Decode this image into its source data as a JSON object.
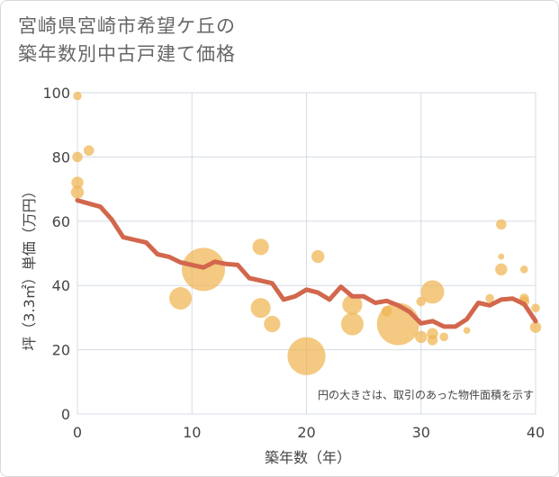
{
  "page": {
    "title_line1": "宮崎県宮崎市希望ケ丘の",
    "title_line2": "築年数別中古戸建て価格"
  },
  "chart_data": {
    "type": "scatter",
    "title": "宮崎県宮崎市希望ケ丘の築年数別中古戸建て価格",
    "xlabel": "築年数（年）",
    "ylabel": "坪（3.3㎡）単価（万円）",
    "xlim": [
      0,
      40
    ],
    "ylim": [
      0,
      100
    ],
    "xticks": [
      0,
      10,
      20,
      30,
      40
    ],
    "yticks": [
      0,
      20,
      40,
      60,
      80,
      100
    ],
    "grid": true,
    "annotation": "円の大きさは、取引のあった物件面積を示す",
    "colors": {
      "points": "#f0b450",
      "line": "#d2674d",
      "grid": "#d5dce6"
    },
    "points": [
      {
        "x": 0,
        "y": 99,
        "size": 1
      },
      {
        "x": 0,
        "y": 80,
        "size": 1.2
      },
      {
        "x": 0,
        "y": 72,
        "size": 1.4
      },
      {
        "x": 0,
        "y": 69,
        "size": 1.5
      },
      {
        "x": 1,
        "y": 82,
        "size": 1.2
      },
      {
        "x": 9,
        "y": 36,
        "size": 2.6
      },
      {
        "x": 11,
        "y": 45,
        "size": 5
      },
      {
        "x": 16,
        "y": 52,
        "size": 1.9
      },
      {
        "x": 16,
        "y": 33,
        "size": 2.3
      },
      {
        "x": 17,
        "y": 28,
        "size": 1.9
      },
      {
        "x": 20,
        "y": 18,
        "size": 4.4
      },
      {
        "x": 21,
        "y": 49,
        "size": 1.5
      },
      {
        "x": 24,
        "y": 34,
        "size": 2.3
      },
      {
        "x": 24,
        "y": 28,
        "size": 2.6
      },
      {
        "x": 27,
        "y": 32,
        "size": 1.2
      },
      {
        "x": 28,
        "y": 28,
        "size": 4.9
      },
      {
        "x": 30,
        "y": 35,
        "size": 1.1
      },
      {
        "x": 30,
        "y": 24,
        "size": 1.4
      },
      {
        "x": 31,
        "y": 38,
        "size": 2.7
      },
      {
        "x": 31,
        "y": 25,
        "size": 1.3
      },
      {
        "x": 31,
        "y": 23,
        "size": 1.2
      },
      {
        "x": 32,
        "y": 24,
        "size": 1
      },
      {
        "x": 34,
        "y": 26,
        "size": 0.8
      },
      {
        "x": 36,
        "y": 36,
        "size": 1
      },
      {
        "x": 37,
        "y": 59,
        "size": 1.2
      },
      {
        "x": 37,
        "y": 49,
        "size": 0.7
      },
      {
        "x": 37,
        "y": 45,
        "size": 1.4
      },
      {
        "x": 39,
        "y": 45,
        "size": 0.9
      },
      {
        "x": 39,
        "y": 36,
        "size": 1.1
      },
      {
        "x": 39,
        "y": 35,
        "size": 1.2
      },
      {
        "x": 40,
        "y": 33,
        "size": 1
      },
      {
        "x": 40,
        "y": 27,
        "size": 1.3
      }
    ],
    "line": {
      "x": [
        0,
        1,
        2,
        3,
        4,
        5,
        6,
        7,
        8,
        9,
        10,
        11,
        12,
        13,
        14,
        15,
        16,
        17,
        18,
        19,
        20,
        21,
        22,
        23,
        24,
        25,
        26,
        27,
        28,
        29,
        30,
        31,
        32,
        33,
        34,
        35,
        36,
        37,
        38,
        39,
        40
      ],
      "y": [
        66.5,
        65.5,
        64.5,
        60.5,
        55,
        54.2,
        53.4,
        49.7,
        48.9,
        47.2,
        46.4,
        45.6,
        47.4,
        46.7,
        46.4,
        42.3,
        41.5,
        40.7,
        35.6,
        36.6,
        38.7,
        37.8,
        35.6,
        39.6,
        36.6,
        36.6,
        34.6,
        35.2,
        33.8,
        31.8,
        28.2,
        28.9,
        27.2,
        27.2,
        29.5,
        34.6,
        33.8,
        35.6,
        35.9,
        34.2,
        28.9
      ]
    }
  }
}
